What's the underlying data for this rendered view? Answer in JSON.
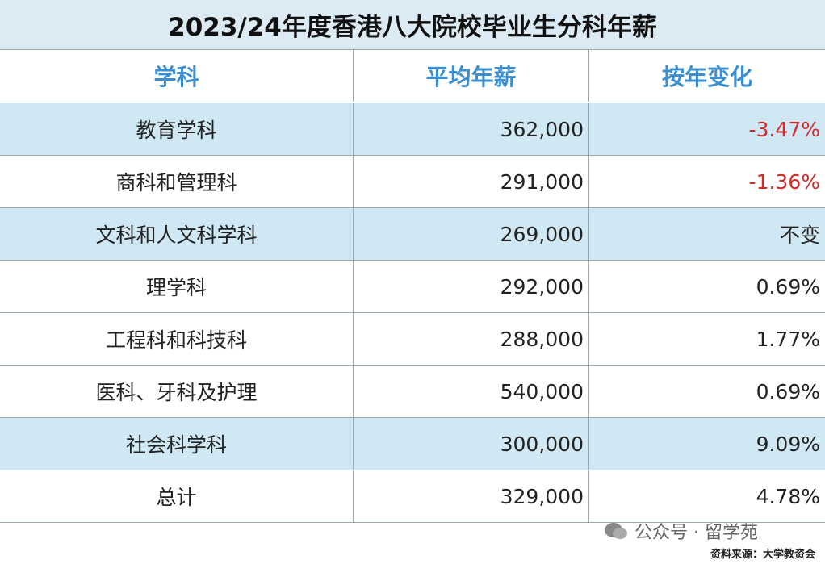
{
  "title": "2023/24年度香港八大院校毕业生分科年薪",
  "table": {
    "header": [
      "学科",
      "平均年薪",
      "按年变化"
    ],
    "rows": [
      [
        "教育学科",
        "362,000",
        "-3.47%"
      ],
      [
        "商科和管理科",
        "291,000",
        "-1.36%"
      ],
      [
        "文科和人文科学科",
        "269,000",
        "不变"
      ],
      [
        "理学科",
        "292,000",
        "0.69%"
      ],
      [
        "工程科和科技科",
        "288,000",
        "1.77%"
      ],
      [
        "医科、牙科及护理",
        "540,000",
        "0.69%"
      ],
      [
        "社会科学科",
        "300,000",
        "9.09%"
      ],
      [
        "总计",
        "329,000",
        "4.78%"
      ]
    ]
  },
  "watermark": "公众号 · 留学苑",
  "source": "资料来源：大学教资会"
}
